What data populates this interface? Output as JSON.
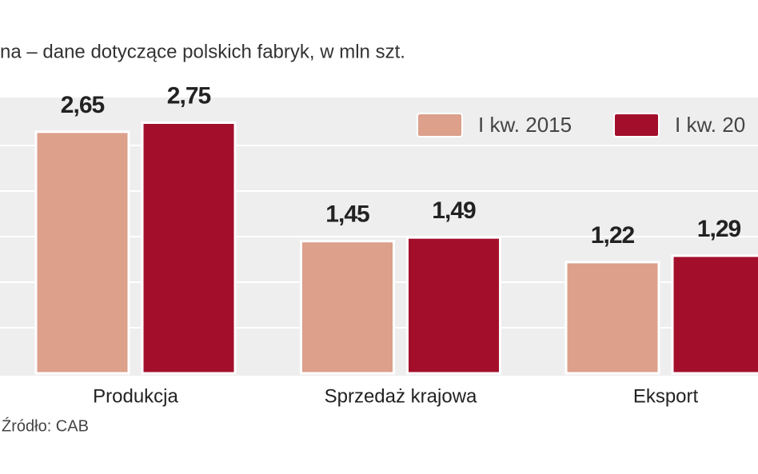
{
  "chart_data": {
    "type": "bar",
    "subtitle": "na – dane dotyczące polskich fabryk, w mln szt.",
    "source": "Źródło: CAB",
    "categories": [
      "Produkcja",
      "Sprzedaż krajowa",
      "Eksport"
    ],
    "series": [
      {
        "name": "I kw. 2015",
        "color": "#dca08b",
        "values": [
          2.65,
          1.45,
          1.22
        ],
        "value_labels": [
          "2,65",
          "1,45",
          "1,22"
        ]
      },
      {
        "name": "I kw. 20",
        "color": "#a30f2b",
        "values": [
          2.75,
          1.49,
          1.29
        ],
        "value_labels": [
          "2,75",
          "1,49",
          "1,29"
        ]
      }
    ],
    "ylim": [
      0,
      3
    ],
    "yticks": [
      0.5,
      1,
      1.5,
      2,
      2.5
    ],
    "grid": true
  }
}
